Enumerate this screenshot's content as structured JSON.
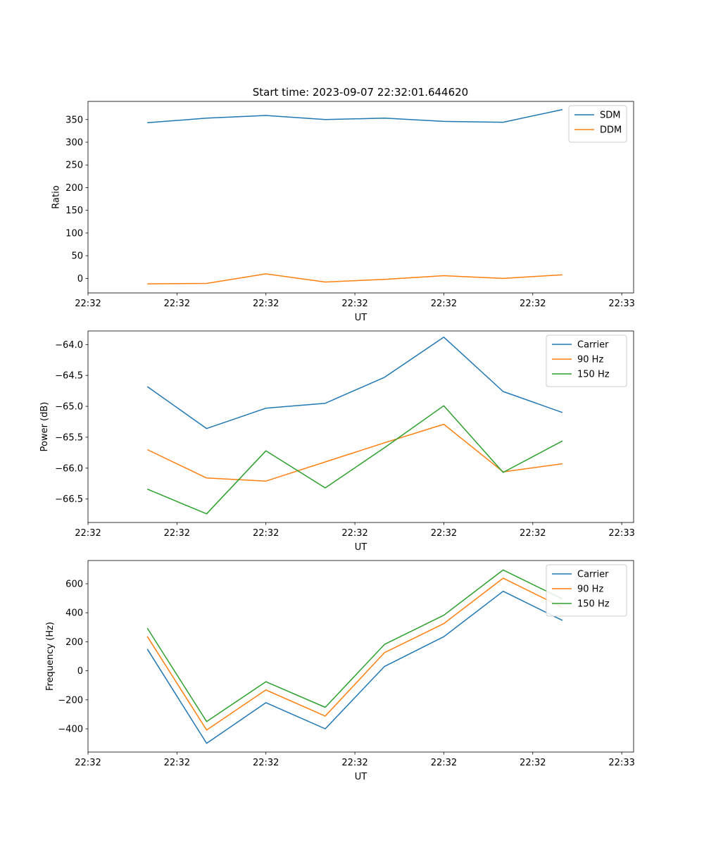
{
  "figure": {
    "suptitle": "Start time: 2023-09-07 22:32:01.644620"
  },
  "chart_data": [
    {
      "type": "line",
      "title": "Start time: 2023-09-07 22:32:01.644620",
      "xlabel": "UT",
      "ylabel": "Ratio",
      "x": [
        1.0,
        2.0,
        3.0,
        4.0,
        5.0,
        6.0,
        7.0,
        8.0
      ],
      "xlim": [
        0.0,
        9.2
      ],
      "xticks": [
        0,
        1.5,
        3,
        4.5,
        6,
        7.5,
        9
      ],
      "xticklabels": [
        "22:32",
        "22:32",
        "22:32",
        "22:32",
        "22:32",
        "22:32",
        "22:33"
      ],
      "ylim": [
        -32,
        390
      ],
      "yticks": [
        0,
        50,
        100,
        150,
        200,
        250,
        300,
        350
      ],
      "yticklabels": [
        "0",
        "50",
        "100",
        "150",
        "200",
        "250",
        "300",
        "350"
      ],
      "legend": "top-right",
      "series": [
        {
          "name": "SDM",
          "color": "#1f77b4",
          "values": [
            343,
            353,
            359,
            350,
            353,
            346,
            344,
            372
          ]
        },
        {
          "name": "DDM",
          "color": "#ff7f0e",
          "values": [
            -12,
            -11,
            10,
            -8,
            -2,
            6,
            0,
            8
          ]
        }
      ]
    },
    {
      "type": "line",
      "title": "",
      "xlabel": "UT",
      "ylabel": "Power (dB)",
      "x": [
        1.0,
        2.0,
        3.0,
        4.0,
        5.0,
        6.0,
        7.0,
        8.0
      ],
      "xlim": [
        0.0,
        9.2
      ],
      "xticks": [
        0,
        1.5,
        3,
        4.5,
        6,
        7.5,
        9
      ],
      "xticklabels": [
        "22:32",
        "22:32",
        "22:32",
        "22:32",
        "22:32",
        "22:32",
        "22:33"
      ],
      "ylim": [
        -66.88,
        -63.78
      ],
      "yticks": [
        -66.5,
        -66.0,
        -65.5,
        -65.0,
        -64.5,
        -64.0
      ],
      "yticklabels": [
        "−66.5",
        "−66.0",
        "−65.5",
        "−65.0",
        "−64.5",
        "−64.0"
      ],
      "legend": "top-right",
      "series": [
        {
          "name": "Carrier",
          "color": "#1f77b4",
          "values": [
            -64.68,
            -65.36,
            -65.03,
            -64.95,
            -64.53,
            -63.88,
            -64.76,
            -65.1
          ]
        },
        {
          "name": "90 Hz",
          "color": "#ff7f0e",
          "values": [
            -65.7,
            -66.16,
            -66.21,
            -65.9,
            -65.59,
            -65.29,
            -66.06,
            -65.93
          ]
        },
        {
          "name": "150 Hz",
          "color": "#2ca02c",
          "values": [
            -66.34,
            -66.74,
            -65.72,
            -66.32,
            -65.67,
            -64.99,
            -66.07,
            -65.56
          ]
        }
      ]
    },
    {
      "type": "line",
      "title": "",
      "xlabel": "UT",
      "ylabel": "Frequency (Hz)",
      "x": [
        1.0,
        2.0,
        3.0,
        4.0,
        5.0,
        6.0,
        7.0,
        8.0
      ],
      "xlim": [
        0.0,
        9.2
      ],
      "xticks": [
        0,
        1.5,
        3,
        4.5,
        6,
        7.5,
        9
      ],
      "xticklabels": [
        "22:32",
        "22:32",
        "22:32",
        "22:32",
        "22:32",
        "22:32",
        "22:33"
      ],
      "ylim": [
        -560,
        760
      ],
      "yticks": [
        -400,
        -200,
        0,
        200,
        400,
        600
      ],
      "yticklabels": [
        "−400",
        "−200",
        "0",
        "200",
        "400",
        "600"
      ],
      "legend": "top-right",
      "series": [
        {
          "name": "Carrier",
          "color": "#1f77b4",
          "values": [
            150,
            -500,
            -220,
            -400,
            30,
            235,
            548,
            347
          ]
        },
        {
          "name": "90 Hz",
          "color": "#ff7f0e",
          "values": [
            237,
            -408,
            -132,
            -312,
            125,
            325,
            638,
            437
          ]
        },
        {
          "name": "150 Hz",
          "color": "#2ca02c",
          "values": [
            294,
            -350,
            -75,
            -252,
            182,
            383,
            695,
            495
          ]
        }
      ]
    }
  ]
}
